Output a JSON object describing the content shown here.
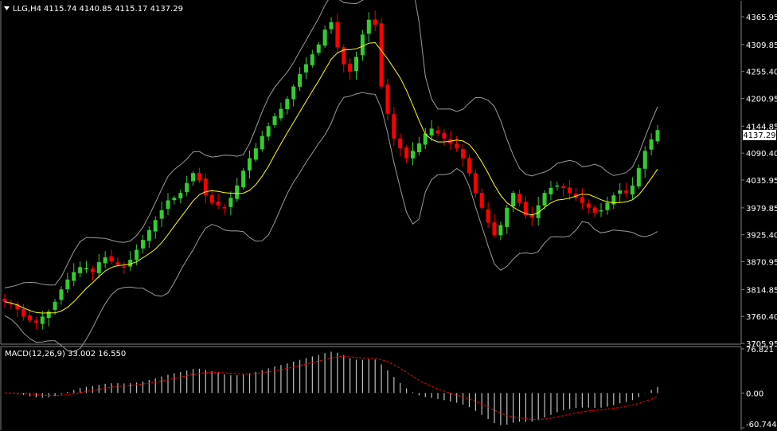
{
  "colors": {
    "background": "#000000",
    "foreground": "#ffffff",
    "bull_candle": "#32cd32",
    "bear_candle": "#ff0000",
    "moving_average": "#ffff00",
    "bands": "#9a9a9a",
    "signal_line": "#ff0000",
    "macd_bars": "#c0c0c0",
    "panel_border": "#808080",
    "price_tag_bg": "#ffffff",
    "price_tag_text": "#000000"
  },
  "header": {
    "menu_icon": "triangle-down-icon",
    "symbol_timeframe": "LLG,H4",
    "ohlc": "4115.74 4140.85 4115.17 4137.29"
  },
  "price_axis": {
    "labels": [
      "4365.95",
      "4309.85",
      "4255.40",
      "4200.95",
      "4144.85",
      "4090.40",
      "4035.95",
      "3979.85",
      "3925.40",
      "3870.95",
      "3814.85",
      "3760.40",
      "3705.95"
    ],
    "current_price_label": "4137.29"
  },
  "macd": {
    "title": "MACD(12,26,9) 33.002 16.550",
    "axis_labels": [
      "76.821",
      "0.00",
      "-60.744"
    ]
  },
  "chart_data": [
    {
      "type": "candlestick",
      "symbol": "LLG",
      "timeframe": "H4",
      "overlays": [
        "moving average (yellow)",
        "bands (gray)"
      ],
      "ylim": [
        3705.95,
        4395
      ],
      "grid": false,
      "close_approx": [
        3790,
        3785,
        3775,
        3760,
        3752,
        3748,
        3760,
        3770,
        3790,
        3815,
        3835,
        3850,
        3860,
        3858,
        3850,
        3870,
        3880,
        3872,
        3865,
        3860,
        3875,
        3895,
        3915,
        3935,
        3955,
        3975,
        3995,
        4000,
        4010,
        4030,
        4050,
        4035,
        4005,
        3990,
        3985,
        3980,
        4000,
        4025,
        4055,
        4080,
        4100,
        4125,
        4145,
        4165,
        4180,
        4200,
        4225,
        4250,
        4270,
        4290,
        4310,
        4340,
        4355,
        4305,
        4270,
        4255,
        4285,
        4330,
        4360,
        4350,
        4225,
        4170,
        4120,
        4100,
        4080,
        4095,
        4110,
        4130,
        4140,
        4130,
        4120,
        4110,
        4100,
        4080,
        4050,
        4010,
        3980,
        3950,
        3925,
        3945,
        3980,
        4010,
        3990,
        3965,
        3960,
        3985,
        4010,
        4020,
        4025,
        4020,
        4010,
        4000,
        3990,
        3980,
        3970,
        3975,
        3990,
        4005,
        4015,
        4010,
        4025,
        4060,
        4095,
        4118,
        4137
      ],
      "indicator": {
        "name": "MACD(12,26,9)",
        "macd_value": 33.002,
        "signal_value": 16.55,
        "ylim": [
          -60.744,
          76.821
        ]
      }
    }
  ]
}
